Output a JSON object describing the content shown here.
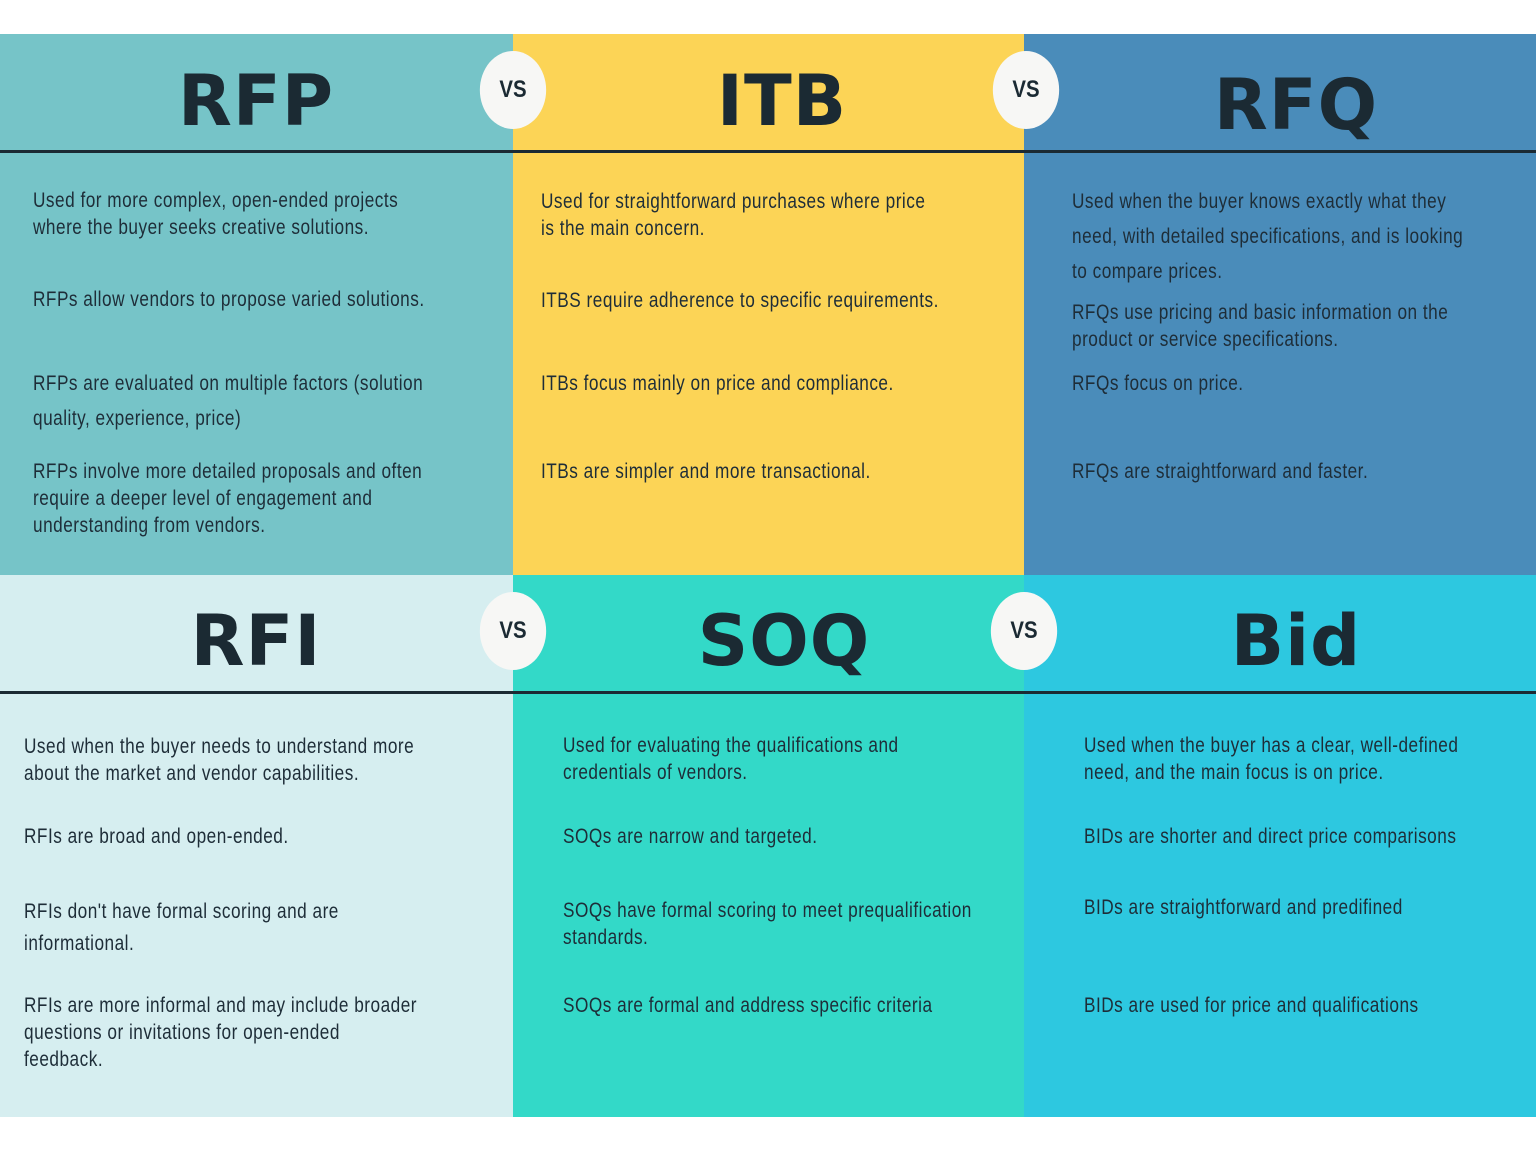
{
  "colors": {
    "rfp": "#76c4c8",
    "itb": "#fcd456",
    "rfq": "#4a8cba",
    "rfi": "#d6eef0",
    "soq": "#33d9c8",
    "bid": "#2dc8e0",
    "text": "#1e2d38"
  },
  "vs_label": "VS",
  "columns": [
    {
      "title": "RFP",
      "items": [
        "Used for more complex, open-ended projects\nwhere the buyer seeks creative solutions.",
        "RFPs allow vendors to propose varied solutions.",
        "RFPs are evaluated on multiple factors (solution\nquality, experience, price)",
        "RFPs involve more detailed proposals and often\nrequire a deeper level of engagement and\nunderstanding from vendors."
      ]
    },
    {
      "title": "ITB",
      "items": [
        "Used for straightforward purchases where price\nis the main concern.",
        "ITBS require adherence to specific requirements.",
        "ITBs focus mainly on price and compliance.",
        "ITBs are simpler and more transactional."
      ]
    },
    {
      "title": "RFQ",
      "items": [
        "Used when the buyer knows exactly what they\nneed, with detailed specifications, and is looking\nto compare prices.",
        "RFQs use pricing and basic information on the\nproduct or service specifications.",
        "RFQs focus on price.",
        "RFQs are straightforward and faster."
      ]
    },
    {
      "title": "RFI",
      "items": [
        "Used when the buyer needs to understand more\nabout the market and vendor capabilities.",
        "RFIs are broad and open-ended.",
        "RFIs don't have formal scoring and are\ninformational.",
        "RFIs are more informal and may include broader\nquestions or invitations for open-ended\nfeedback."
      ]
    },
    {
      "title": "SOQ",
      "items": [
        "Used for evaluating the qualifications and\ncredentials of vendors.",
        "SOQs are narrow and targeted.",
        "SOQs have formal scoring to meet prequalification\nstandards.",
        "SOQs are formal and address specific criteria"
      ]
    },
    {
      "title": "Bid",
      "items": [
        "Used when the buyer has a clear, well-defined\nneed, and the main focus is on price.",
        "BIDs are shorter and direct price comparisons",
        "BIDs are straightforward and predifined",
        "BIDs are used for price and qualifications"
      ]
    }
  ]
}
